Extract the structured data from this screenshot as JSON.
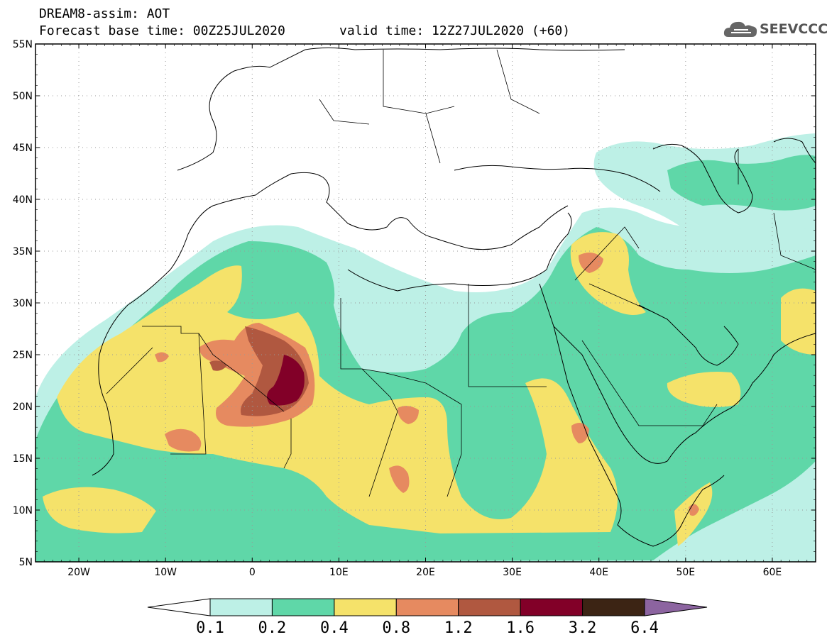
{
  "header": {
    "line1": "DREAM8-assim: AOT",
    "line2": "Forecast base time: 00Z25JUL2020",
    "valid": "valid time: 12Z27JUL2020 (+60)",
    "logo_text": "SEEVCCC",
    "logo_icon": "cloud-icon"
  },
  "map": {
    "projection": "lat-lon",
    "lon_range": [
      -25,
      65
    ],
    "lat_range": [
      5,
      55
    ],
    "grid": "dotted",
    "lat_ticks": [
      {
        "value": 55,
        "label": "55N"
      },
      {
        "value": 50,
        "label": "50N"
      },
      {
        "value": 45,
        "label": "45N"
      },
      {
        "value": 40,
        "label": "40N"
      },
      {
        "value": 35,
        "label": "35N"
      },
      {
        "value": 30,
        "label": "30N"
      },
      {
        "value": 25,
        "label": "25N"
      },
      {
        "value": 20,
        "label": "20N"
      },
      {
        "value": 15,
        "label": "15N"
      },
      {
        "value": 10,
        "label": "10N"
      },
      {
        "value": 5,
        "label": "5N"
      }
    ],
    "lon_ticks": [
      {
        "value": -20,
        "label": "20W"
      },
      {
        "value": -10,
        "label": "10W"
      },
      {
        "value": 0,
        "label": "0"
      },
      {
        "value": 10,
        "label": "10E"
      },
      {
        "value": 20,
        "label": "20E"
      },
      {
        "value": 30,
        "label": "30E"
      },
      {
        "value": 40,
        "label": "40E"
      },
      {
        "value": 50,
        "label": "50E"
      },
      {
        "value": 60,
        "label": "60E"
      }
    ]
  },
  "colorbar": {
    "levels": [
      "0.1",
      "0.2",
      "0.4",
      "0.8",
      "1.2",
      "1.6",
      "3.2",
      "6.4"
    ],
    "colors": [
      "#ffffff",
      "#bdf0e6",
      "#5fd7a8",
      "#f5e26a",
      "#e68a60",
      "#b05840",
      "#820028",
      "#3c2414",
      "#8c64a0"
    ]
  }
}
